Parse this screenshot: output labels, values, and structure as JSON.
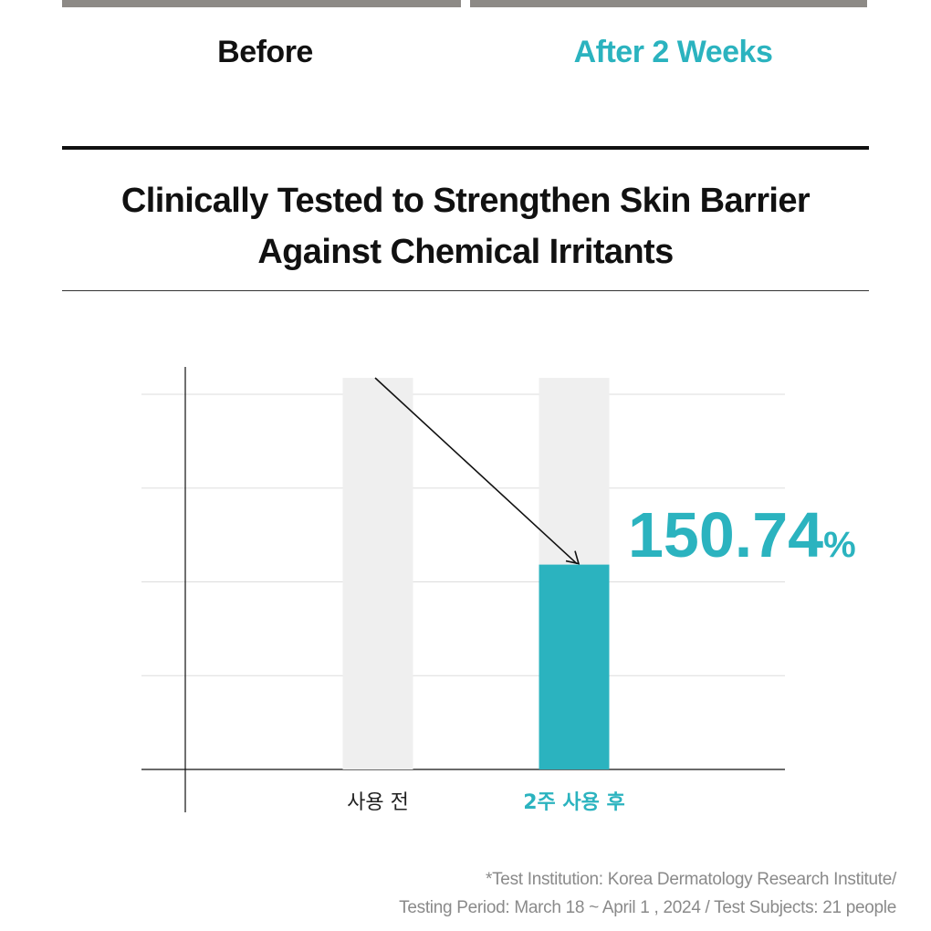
{
  "colors": {
    "accent": "#2bb3bf",
    "bar_background": "#efefef",
    "gridline": "#dddddd",
    "axis": "#111111",
    "photo_strip": "#8d8a86"
  },
  "photo_labels": {
    "before": "Before",
    "after": "After 2 Weeks"
  },
  "headline": {
    "line1": "Clinically Tested to Strengthen Skin Barrier",
    "line2": "Against Chemical Irritants"
  },
  "chart_data": {
    "type": "bar",
    "categories": [
      "사용 전",
      "2주 사용 후"
    ],
    "values": [
      100,
      54.6
    ],
    "ylim": [
      0,
      100
    ],
    "grid": true,
    "gridlines": [
      25,
      50,
      75,
      100
    ],
    "highlight_category": "2주 사용 후",
    "annotation": {
      "value_text": "150.74",
      "unit": "%"
    },
    "title": "",
    "xlabel": "",
    "ylabel": ""
  },
  "footnote": {
    "line1": "*Test Institution: Korea Dermatology Research Institute/",
    "line2": "Testing Period: March 18 ~ April 1 , 2024 / Test Subjects: 21 people"
  }
}
